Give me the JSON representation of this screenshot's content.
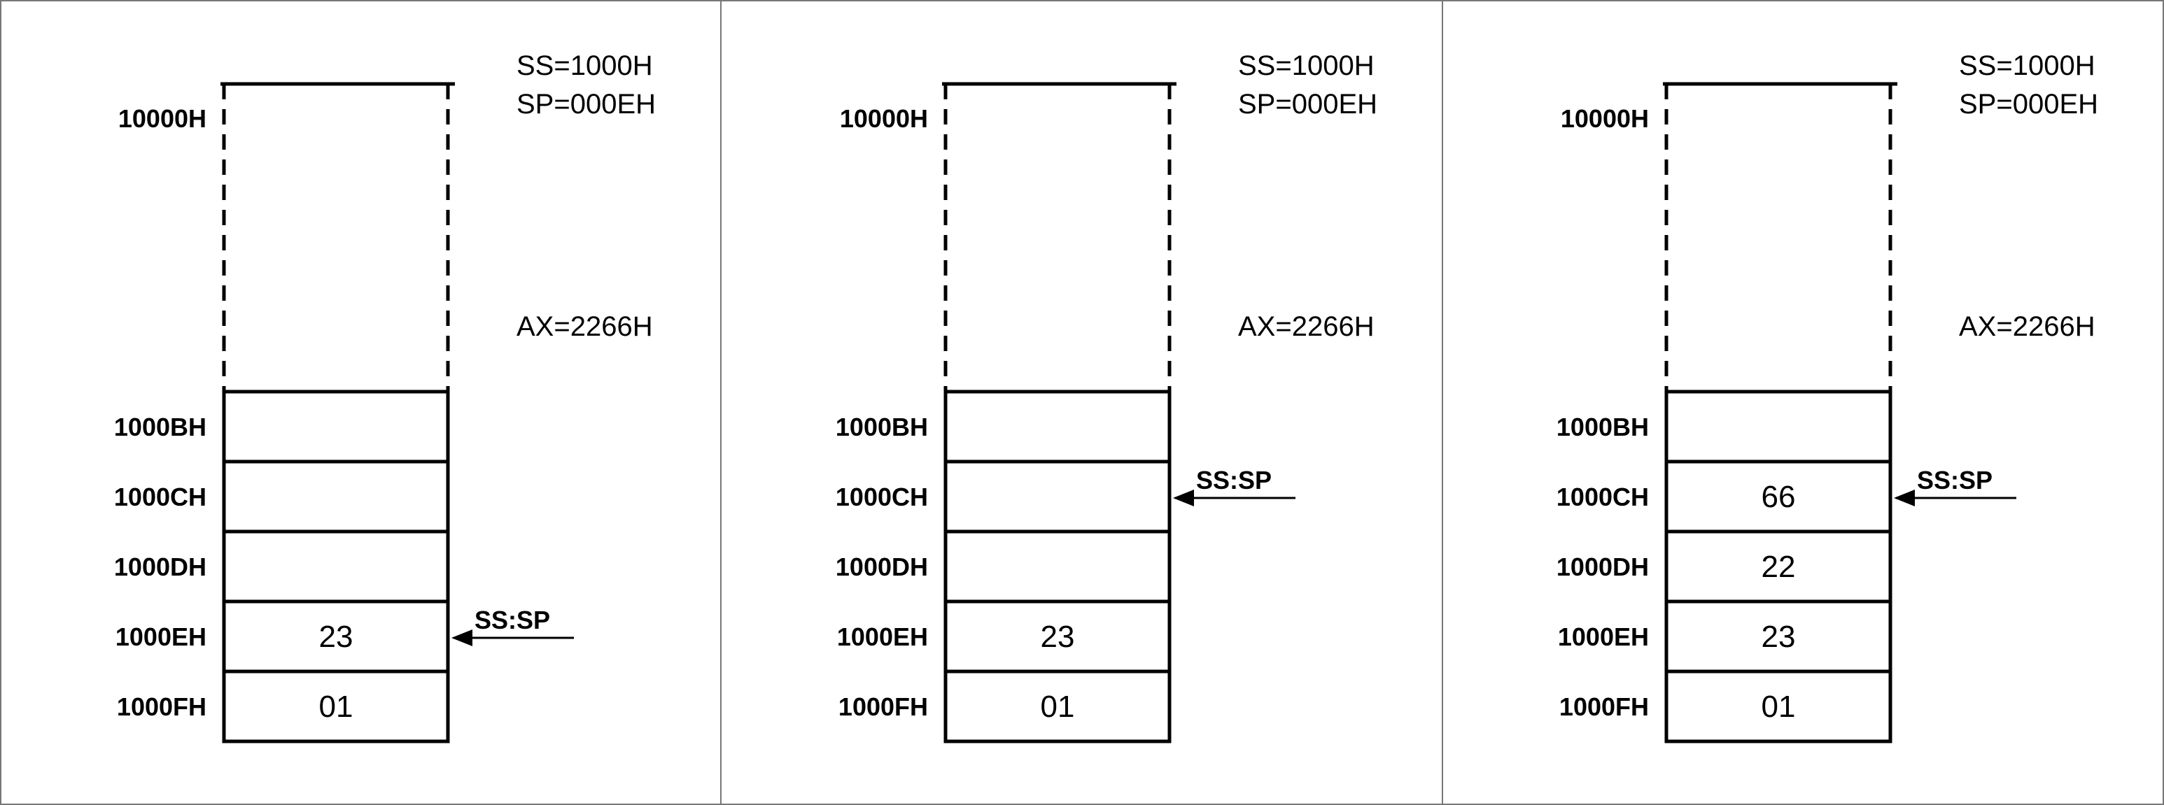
{
  "panels": [
    {
      "registers": [
        "SS=1000H",
        "SP=000EH",
        "AX=2266H"
      ],
      "top_address": "10000H",
      "cells": [
        {
          "address": "1000BH",
          "value": ""
        },
        {
          "address": "1000CH",
          "value": ""
        },
        {
          "address": "1000DH",
          "value": ""
        },
        {
          "address": "1000EH",
          "value": "23"
        },
        {
          "address": "1000FH",
          "value": "01"
        }
      ],
      "pointer": {
        "label": "SS:SP",
        "cell_index": 3
      }
    },
    {
      "registers": [
        "SS=1000H",
        "SP=000EH",
        "AX=2266H"
      ],
      "top_address": "10000H",
      "cells": [
        {
          "address": "1000BH",
          "value": ""
        },
        {
          "address": "1000CH",
          "value": ""
        },
        {
          "address": "1000DH",
          "value": ""
        },
        {
          "address": "1000EH",
          "value": "23"
        },
        {
          "address": "1000FH",
          "value": "01"
        }
      ],
      "pointer": {
        "label": "SS:SP",
        "cell_index": 1
      }
    },
    {
      "registers": [
        "SS=1000H",
        "SP=000EH",
        "AX=2266H"
      ],
      "top_address": "10000H",
      "cells": [
        {
          "address": "1000BH",
          "value": ""
        },
        {
          "address": "1000CH",
          "value": "66"
        },
        {
          "address": "1000DH",
          "value": "22"
        },
        {
          "address": "1000EH",
          "value": "23"
        },
        {
          "address": "1000FH",
          "value": "01"
        }
      ],
      "pointer": {
        "label": "SS:SP",
        "cell_index": 1
      }
    }
  ]
}
